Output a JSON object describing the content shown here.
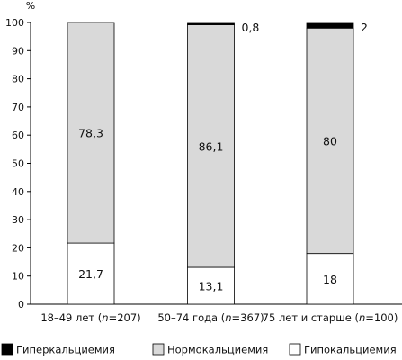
{
  "chart_data": {
    "type": "bar",
    "stacked": true,
    "y_unit": "%",
    "ylim": [
      0,
      100
    ],
    "yticks": [
      0,
      10,
      20,
      30,
      40,
      50,
      60,
      70,
      80,
      90,
      100
    ],
    "categories": [
      {
        "label": "18–49 лет (",
        "n": "n",
        "suffix": "=207)"
      },
      {
        "label": "50–74 года (",
        "n": "n",
        "suffix": "=367)"
      },
      {
        "label": "75 лет и старше (",
        "n": "n",
        "suffix": "=100)"
      }
    ],
    "series": [
      {
        "name": "Гипокальциемия",
        "values": [
          21.7,
          13.1,
          18
        ],
        "labels": [
          "21,7",
          "13,1",
          "18"
        ],
        "color": "#ffffff"
      },
      {
        "name": "Нормокальциемия",
        "values": [
          78.3,
          86.1,
          80
        ],
        "labels": [
          "78,3",
          "86,1",
          "80"
        ],
        "color": "#d9d9d9"
      },
      {
        "name": "Гиперкальциемия",
        "values": [
          0,
          0.8,
          2
        ],
        "labels": [
          "",
          "0,8",
          "2"
        ],
        "color": "#000000"
      }
    ],
    "legend_order": [
      "Гиперкальциемия",
      "Нормокальциемия",
      "Гипокальциемия"
    ],
    "legend_position": "bottom"
  }
}
